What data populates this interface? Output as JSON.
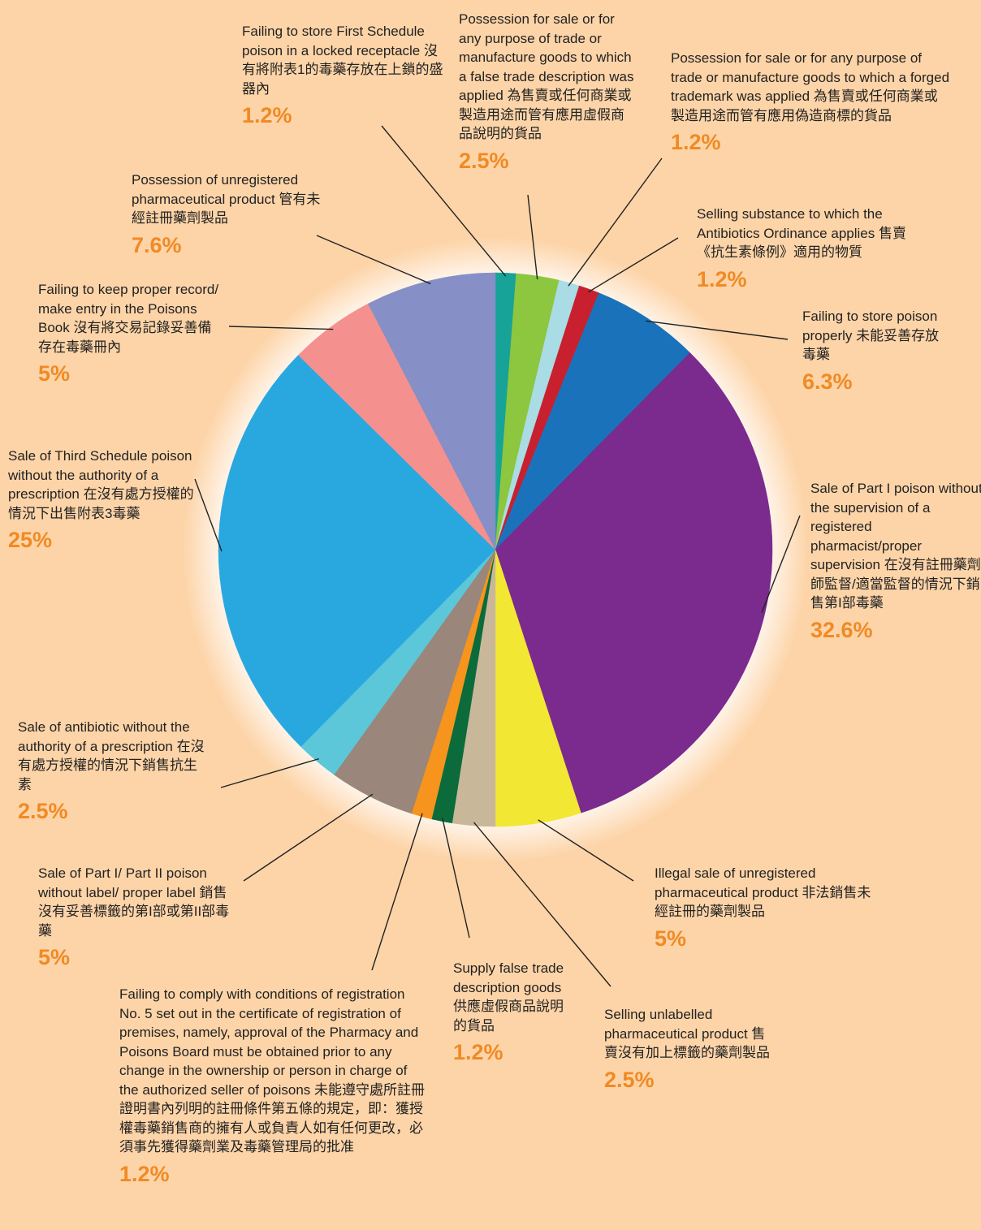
{
  "chart_data": {
    "type": "pie",
    "categories": [
      "Failing to store First Schedule poison in a locked receptacle 沒有將附表1的毒藥存放在上鎖的盛器內",
      "Possession for sale or for any purpose of trade or manufacture goods to which a false trade description was applied 為售賣或任何商業或製造用途而管有應用虛假商品說明的貨品",
      "Possession for sale or for any purpose of trade or manufacture goods to which a forged trademark was applied 為售賣或任何商業或製造用途而管有應用偽造商標的貨品",
      "Selling substance to which the Antibiotics Ordinance applies 售賣《抗生素條例》適用的物質",
      "Failing to store poison properly 未能妥善存放毒藥",
      "Sale of Part I poison without the supervision of a registered pharmacist/proper supervision 在沒有註冊藥劑師監督/適當監督的情況下銷售第I部毒藥",
      "Illegal sale of unregistered pharmaceutical product 非法銷售未經註冊的藥劑製品",
      "Selling unlabelled pharmaceutical product 售賣沒有加上標籤的藥劑製品",
      "Supply false trade description goods 供應虛假商品說明的貨品",
      "Failing to comply with conditions of registration No. 5 set out in the certificate of registration of premises, namely, approval of the Pharmacy and Poisons Board must be obtained prior to any change in the ownership or person in charge of the authorized seller of poisons 未能遵守處所註冊證明書內列明的註冊條件第五條的規定，即：獲授權毒藥銷售商的擁有人或負責人如有任何更改，必須事先獲得藥劑業及毒藥管理局的批准",
      "Sale of Part I/ Part II poison without label/ proper label 銷售沒有妥善標籤的第I部或第II部毒藥",
      "Sale of antibiotic without the authority of a prescription 在沒有處方授權的情況下銷售抗生素",
      "Sale of Third Schedule poison without the authority of a prescription 在沒有處方授權的情況下出售附表3毒藥",
      "Failing to keep proper record/ make entry  in the Poisons Book 沒有將交易記錄妥善備存在毒藥冊內",
      "Possession of unregistered pharmaceutical product 管有未經註冊藥劑製品"
    ],
    "values": [
      1.2,
      2.5,
      1.2,
      1.2,
      6.3,
      32.6,
      5,
      2.5,
      1.2,
      1.2,
      5,
      2.5,
      25,
      5,
      7.6
    ],
    "value_labels": [
      "1.2%",
      "2.5%",
      "1.2%",
      "1.2%",
      "6.3%",
      "32.6%",
      "5%",
      "2.5%",
      "1.2%",
      "1.2%",
      "5%",
      "2.5%",
      "25%",
      "5%",
      "7.6%"
    ],
    "colors": [
      "#17a398",
      "#8dc63f",
      "#a9dce4",
      "#c8202f",
      "#1a73ba",
      "#7b2a8e",
      "#f2e733",
      "#c9b799",
      "#0b6b3a",
      "#f7941d",
      "#9a867a",
      "#5bc7d8",
      "#29a8e0",
      "#f4908e",
      "#868fc6"
    ]
  }
}
